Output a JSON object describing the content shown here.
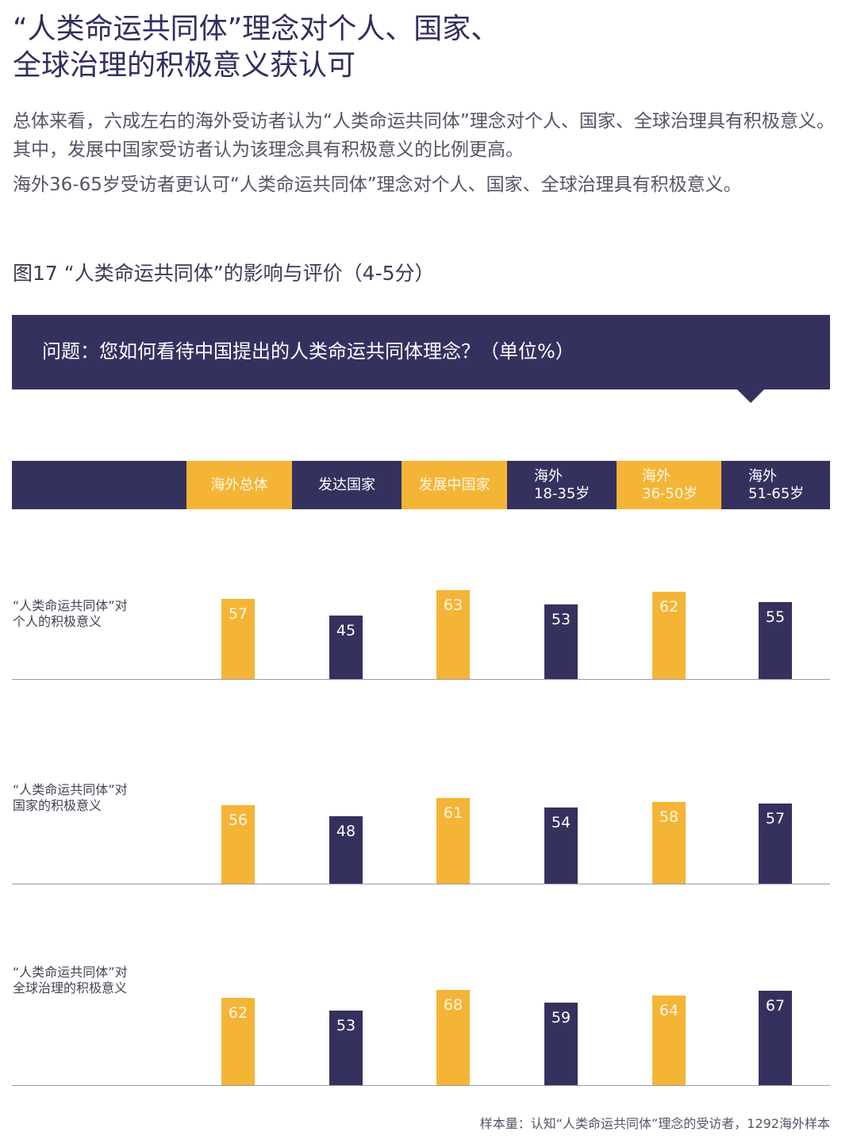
{
  "heading": {
    "line1": "“人类命运共同体”理念对个人、国家、",
    "line2": "全球治理的积极意义获认可"
  },
  "paragraphs": [
    "总体来看，六成左右的海外受访者认为“人类命运共同体”理念对个人、国家、全球治理具有积极意义。其中，发展中国家受访者认为该理念具有积极意义的比例更高。",
    "海外36-65岁受访者更认可“人类命运共同体”理念对个人、国家、全球治理具有积极意义。"
  ],
  "figure_caption": "图17 “人类命运共同体”的影响与评价（4-5分）",
  "question": "问题：您如何看待中国提出的人类命运共同体理念？（单位%）",
  "colors": {
    "gold": "#f4b537",
    "navy": "#35315f"
  },
  "chart_data": {
    "type": "bar",
    "categories": [
      "海外总体",
      "发达国家",
      "发展中国家",
      "海外\n18-35岁",
      "海外\n36-50岁",
      "海外\n51-65岁"
    ],
    "category_colors": [
      "gold",
      "navy",
      "gold",
      "navy",
      "gold",
      "navy"
    ],
    "rows": [
      {
        "label": "“人类命运共同体”对\n个人的积极意义",
        "values": [
          57,
          45,
          63,
          53,
          62,
          55
        ]
      },
      {
        "label": "“人类命运共同体”对\n国家的积极意义",
        "values": [
          56,
          48,
          61,
          54,
          58,
          57
        ]
      },
      {
        "label": "“人类命运共同体”对\n全球治理的积极意义",
        "values": [
          62,
          53,
          68,
          59,
          64,
          67
        ]
      }
    ],
    "unit": "%"
  },
  "footnote": "样本量：认知“人类命运共同体”理念的受访者，1292海外样本"
}
